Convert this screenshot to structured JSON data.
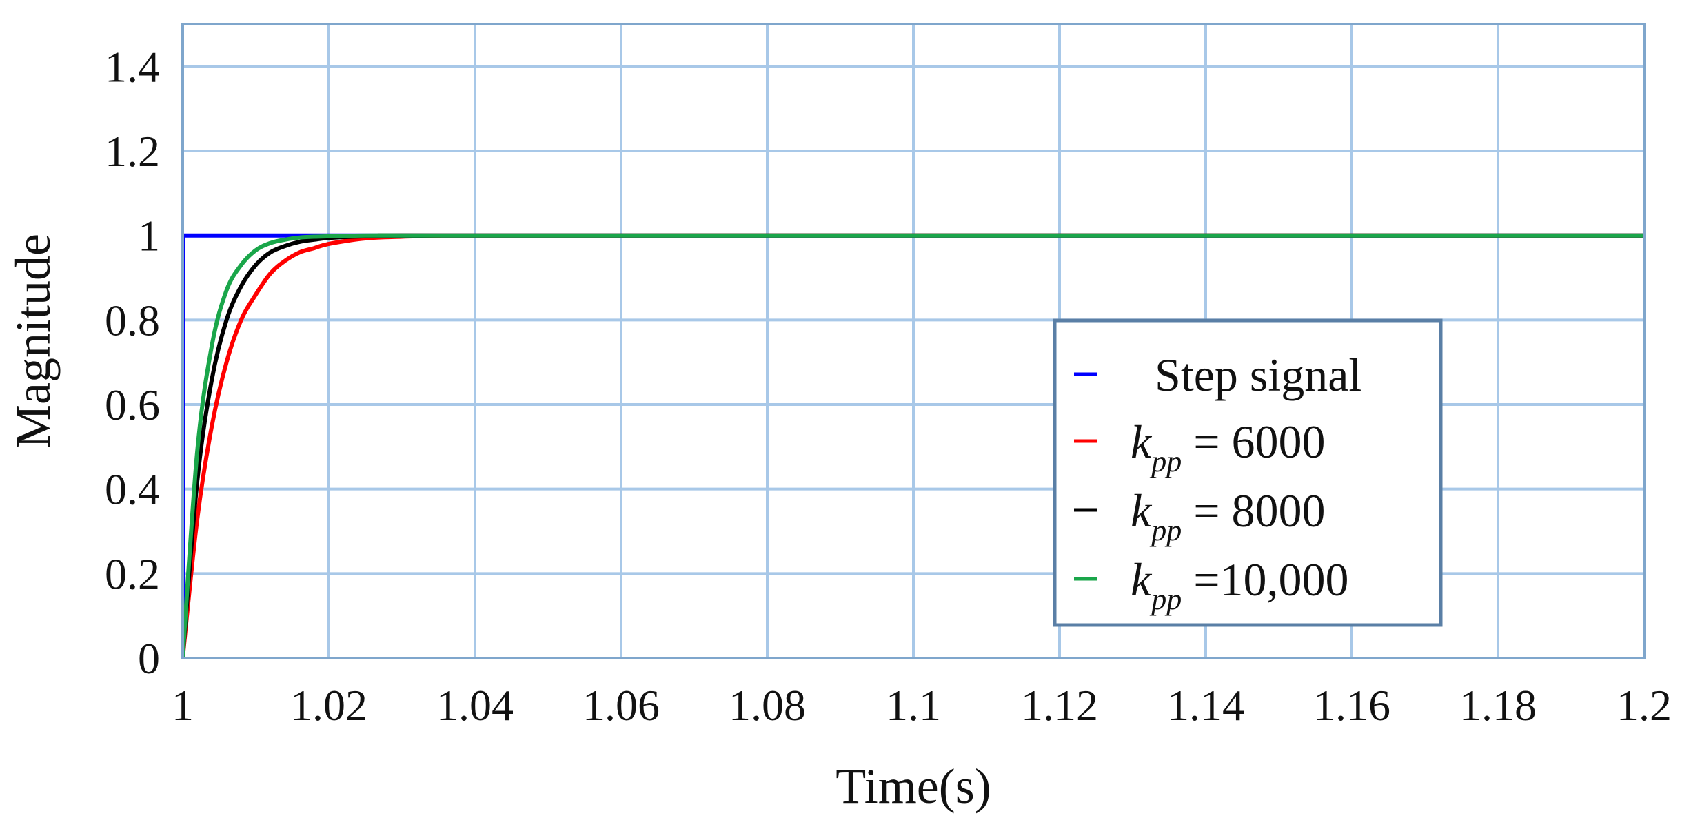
{
  "chart_data": {
    "type": "line",
    "title": "",
    "xlabel": "Time(s)",
    "ylabel": "Magnitude",
    "xlim": [
      1,
      1.2
    ],
    "ylim": [
      0,
      1.5
    ],
    "x_ticks": [
      1,
      1.02,
      1.04,
      1.06,
      1.08,
      1.1,
      1.12,
      1.14,
      1.16,
      1.18,
      1.2
    ],
    "x_tick_labels": [
      "1",
      "1.02",
      "1.04",
      "1.06",
      "1.08",
      "1.1",
      "1.12",
      "1.14",
      "1.16",
      "1.18",
      "1.2"
    ],
    "y_ticks": [
      0,
      0.2,
      0.4,
      0.6,
      0.8,
      1,
      1.2,
      1.4
    ],
    "y_tick_labels": [
      "0",
      "0.2",
      "0.4",
      "0.6",
      "0.8",
      "1",
      "1.2",
      "1.4"
    ],
    "grid": true,
    "legend_position": "center-right",
    "series": [
      {
        "name": "Step signal",
        "color": "#0000ff",
        "x": [
          1,
          1,
          1.2
        ],
        "y": [
          0,
          1,
          1
        ]
      },
      {
        "name": "k_pp = 6000",
        "legend": {
          "symbol": "k",
          "subscript": "pp",
          "rest": " = 6000"
        },
        "color": "#ff0000",
        "x": [
          1,
          1.002,
          1.004,
          1.006,
          1.008,
          1.01,
          1.012,
          1.014,
          1.016,
          1.018,
          1.02,
          1.025,
          1.03,
          1.035,
          1.04,
          1.2
        ],
        "y": [
          0,
          0.33,
          0.55,
          0.7,
          0.8,
          0.86,
          0.91,
          0.94,
          0.96,
          0.97,
          0.98,
          0.993,
          0.997,
          0.999,
          1,
          1
        ]
      },
      {
        "name": "k_pp = 8000",
        "legend": {
          "symbol": "k",
          "subscript": "pp",
          "rest": " = 8000"
        },
        "color": "#000000",
        "x": [
          1,
          1.002,
          1.004,
          1.006,
          1.008,
          1.01,
          1.012,
          1.014,
          1.016,
          1.018,
          1.02,
          1.025,
          1.03,
          1.035,
          1.04,
          1.2
        ],
        "y": [
          0,
          0.42,
          0.66,
          0.8,
          0.88,
          0.93,
          0.96,
          0.975,
          0.985,
          0.99,
          0.994,
          0.998,
          0.999,
          1,
          1,
          1
        ]
      },
      {
        "name": "k_pp =10,000",
        "legend": {
          "symbol": "k",
          "subscript": "pp",
          "rest": " =10,000"
        },
        "color": "#1aa64a",
        "x": [
          1,
          1.002,
          1.004,
          1.006,
          1.008,
          1.01,
          1.012,
          1.014,
          1.016,
          1.018,
          1.02,
          1.025,
          1.03,
          1.035,
          1.04,
          1.2
        ],
        "y": [
          0,
          0.49,
          0.74,
          0.87,
          0.93,
          0.965,
          0.982,
          0.99,
          0.995,
          0.997,
          0.998,
          1,
          1,
          1,
          1,
          1
        ]
      }
    ]
  },
  "colors": {
    "grid": "#a8c8e8",
    "frame": "#7fa6cc",
    "legend_border": "#5a7fa6"
  }
}
